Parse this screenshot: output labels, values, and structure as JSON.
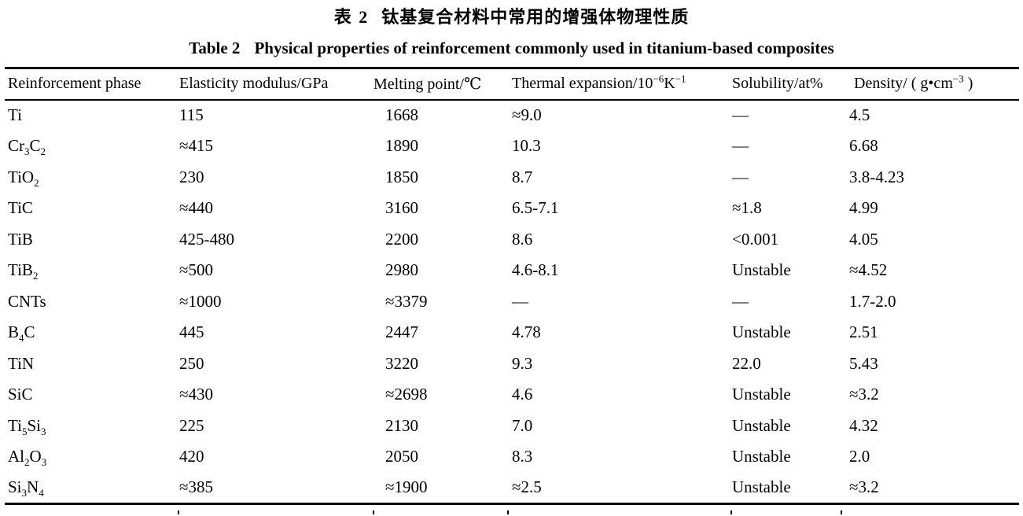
{
  "titles": {
    "cn_label": "表 2",
    "cn_text": "钛基复合材料中常用的增强体物理性质",
    "en_label": "Table 2",
    "en_text": "Physical properties of reinforcement commonly used in titanium-based composites"
  },
  "table": {
    "columns": [
      {
        "key": "phase",
        "label": [
          {
            "t": "Reinforcement phase"
          }
        ]
      },
      {
        "key": "modulus",
        "label": [
          {
            "t": "Elasticity modulus/GPa"
          }
        ]
      },
      {
        "key": "melting",
        "label": [
          {
            "t": "Melting point/℃"
          }
        ]
      },
      {
        "key": "expansion",
        "label": [
          {
            "t": "Thermal expansion/10"
          },
          {
            "sup": "−6"
          },
          {
            "t": "K"
          },
          {
            "sup": "−1"
          }
        ]
      },
      {
        "key": "solubility",
        "label": [
          {
            "t": "Solubility/at%"
          }
        ]
      },
      {
        "key": "density",
        "label": [
          {
            "t": "Density/ ( g•cm"
          },
          {
            "sup": "−3"
          },
          {
            "t": " )"
          }
        ]
      }
    ],
    "rows": [
      {
        "phase": [
          {
            "t": "Ti"
          }
        ],
        "modulus": "115",
        "melting": "1668",
        "expansion": "≈9.0",
        "solubility": "—",
        "density": "4.5"
      },
      {
        "phase": [
          {
            "t": "Cr"
          },
          {
            "sub": "3"
          },
          {
            "t": "C"
          },
          {
            "sub": "2"
          }
        ],
        "modulus": "≈415",
        "melting": "1890",
        "expansion": "10.3",
        "solubility": "—",
        "density": "6.68"
      },
      {
        "phase": [
          {
            "t": "TiO"
          },
          {
            "sub": "2"
          }
        ],
        "modulus": "230",
        "melting": "1850",
        "expansion": "8.7",
        "solubility": "—",
        "density": "3.8-4.23"
      },
      {
        "phase": [
          {
            "t": "TiC"
          }
        ],
        "modulus": "≈440",
        "melting": "3160",
        "expansion": "6.5-7.1",
        "solubility": "≈1.8",
        "density": "4.99"
      },
      {
        "phase": [
          {
            "t": "TiB"
          }
        ],
        "modulus": "425-480",
        "melting": "2200",
        "expansion": "8.6",
        "solubility": "<0.001",
        "density": "4.05"
      },
      {
        "phase": [
          {
            "t": "TiB"
          },
          {
            "sub": "2"
          }
        ],
        "modulus": "≈500",
        "melting": "2980",
        "expansion": "4.6-8.1",
        "solubility": "Unstable",
        "density": "≈4.52"
      },
      {
        "phase": [
          {
            "t": "CNTs"
          }
        ],
        "modulus": "≈1000",
        "melting": "≈3379",
        "expansion": "—",
        "solubility": "—",
        "density": "1.7-2.0"
      },
      {
        "phase": [
          {
            "t": "B"
          },
          {
            "sub": "4"
          },
          {
            "t": "C"
          }
        ],
        "modulus": "445",
        "melting": "2447",
        "expansion": "4.78",
        "solubility": "Unstable",
        "density": "2.51"
      },
      {
        "phase": [
          {
            "t": "TiN"
          }
        ],
        "modulus": "250",
        "melting": "3220",
        "expansion": "9.3",
        "solubility": "22.0",
        "density": "5.43"
      },
      {
        "phase": [
          {
            "t": "SiC"
          }
        ],
        "modulus": "≈430",
        "melting": "≈2698",
        "expansion": "4.6",
        "solubility": "Unstable",
        "density": "≈3.2"
      },
      {
        "phase": [
          {
            "t": "Ti"
          },
          {
            "sub": "5"
          },
          {
            "t": "Si"
          },
          {
            "sub": "3"
          }
        ],
        "modulus": "225",
        "melting": "2130",
        "expansion": "7.0",
        "solubility": "Unstable",
        "density": "4.32"
      },
      {
        "phase": [
          {
            "t": "Al"
          },
          {
            "sub": "2"
          },
          {
            "t": "O"
          },
          {
            "sub": "3"
          }
        ],
        "modulus": "420",
        "melting": "2050",
        "expansion": "8.3",
        "solubility": "Unstable",
        "density": "2.0"
      },
      {
        "phase": [
          {
            "t": "Si"
          },
          {
            "sub": "3"
          },
          {
            "t": "N"
          },
          {
            "sub": "4"
          }
        ],
        "modulus": "≈385",
        "melting": "≈1900",
        "expansion": "≈2.5",
        "solubility": "Unstable",
        "density": "≈3.2"
      }
    ]
  }
}
